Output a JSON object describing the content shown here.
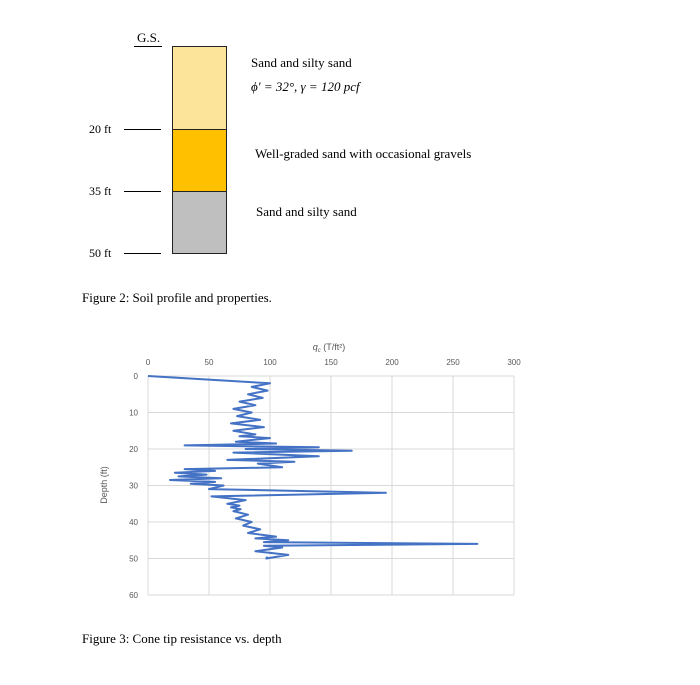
{
  "figure2": {
    "gs_label": "G.S.",
    "depth_labels": [
      "20 ft",
      "35 ft",
      "50 ft"
    ],
    "layers": [
      {
        "name": "Sand and silty sand",
        "properties": "ϕ′ = 32°, γ = 120 pcf",
        "color": "#FCE49A"
      },
      {
        "name": "Well-graded sand with occasional gravels",
        "color": "#FFC000"
      },
      {
        "name": "Sand and silty sand",
        "color": "#BFBFBF"
      }
    ],
    "caption": "Figure 2: Soil profile and properties."
  },
  "figure3": {
    "caption": "Figure 3: Cone tip resistance vs. depth",
    "chart_data": {
      "type": "line",
      "xlabel": "qc (T/ft²)",
      "xlabel_main": "q",
      "xlabel_sub": "c",
      "xlabel_rest": " (T/ft²)",
      "ylabel": "Depth (ft)",
      "xlim": [
        0,
        300
      ],
      "ylim": [
        0,
        60
      ],
      "x_ticks": [
        0,
        50,
        100,
        150,
        200,
        250,
        300
      ],
      "y_ticks": [
        0,
        10,
        20,
        30,
        40,
        50,
        60
      ],
      "x_axis_position": "top",
      "y_axis_inverted": true,
      "grid": true,
      "line_color": "#4472C4",
      "series": [
        {
          "x": [
            0,
            100,
            85,
            98,
            82,
            94,
            75,
            88,
            70,
            85,
            73,
            92,
            68,
            95,
            70,
            88,
            75,
            100,
            72,
            105,
            30,
            140,
            80,
            167,
            70,
            140,
            65,
            120,
            90,
            110,
            30,
            55,
            22,
            48,
            25,
            60,
            18,
            55,
            35,
            62,
            50,
            195,
            52,
            80,
            65,
            75,
            68,
            76,
            70,
            82,
            72,
            85,
            78,
            92,
            82,
            105,
            88,
            115,
            95,
            270,
            95,
            110,
            88,
            115,
            97,
            98
          ],
          "y": [
            0,
            2,
            3,
            4,
            5,
            6,
            7,
            8,
            9,
            10,
            11,
            12,
            13,
            14,
            15,
            16,
            16.5,
            17,
            18,
            18.5,
            19,
            19.5,
            20,
            20.5,
            21,
            22,
            23,
            23.5,
            24,
            25,
            25.5,
            26,
            26.5,
            27,
            27.5,
            28,
            28.5,
            29,
            29.5,
            30,
            31,
            32,
            33,
            34,
            35,
            35.5,
            36,
            36.5,
            37,
            38,
            39,
            40,
            41,
            42,
            43,
            44,
            44.5,
            45,
            45.5,
            46,
            46.5,
            47,
            48,
            49,
            50,
            49.5
          ]
        }
      ]
    }
  }
}
